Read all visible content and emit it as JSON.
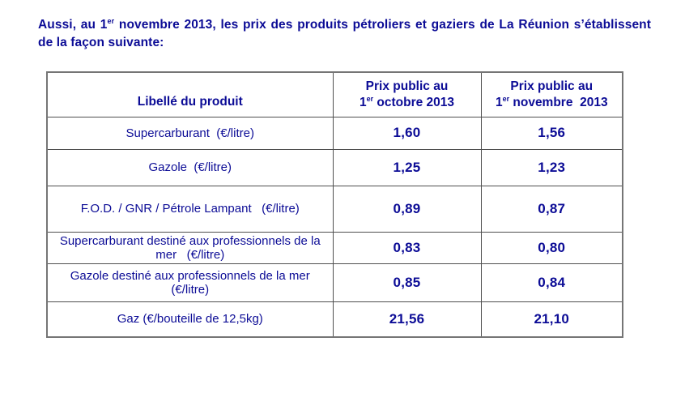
{
  "intro": {
    "part1": "Aussi, au 1",
    "sup": "er",
    "part2": " novembre 2013, les prix des produits pétroliers et gaziers de La Réunion s’établissent de la façon suivante:"
  },
  "colors": {
    "text_navy": "#0c0c96",
    "border_gray": "#4f4f4f",
    "background": "#ffffff"
  },
  "table": {
    "header": {
      "product_label": "Libellé du produit",
      "col_october": {
        "line1": "Prix public au",
        "day": "1",
        "sup": "er",
        "rest": " octobre 2013"
      },
      "col_november": {
        "line1": "Prix public au",
        "day": "1",
        "sup": "er",
        "rest": " novembre  2013"
      }
    },
    "rows": [
      {
        "label": "Supercarburant  (€/litre)",
        "october": "1,60",
        "november": "1,56"
      },
      {
        "label": "Gazole  (€/litre)",
        "october": "1,25",
        "november": "1,23"
      },
      {
        "label": "F.O.D. / GNR / Pétrole Lampant   (€/litre)",
        "october": "0,89",
        "november": "0,87"
      },
      {
        "label": "Supercarburant destiné aux professionnels de la mer   (€/litre)",
        "october": "0,83",
        "november": "0,80"
      },
      {
        "label": "Gazole destiné aux professionnels de la mer   (€/litre)",
        "october": "0,85",
        "november": "0,84"
      },
      {
        "label": "Gaz (€/bouteille de 12,5kg)",
        "october": "21,56",
        "november": "21,10"
      }
    ]
  }
}
